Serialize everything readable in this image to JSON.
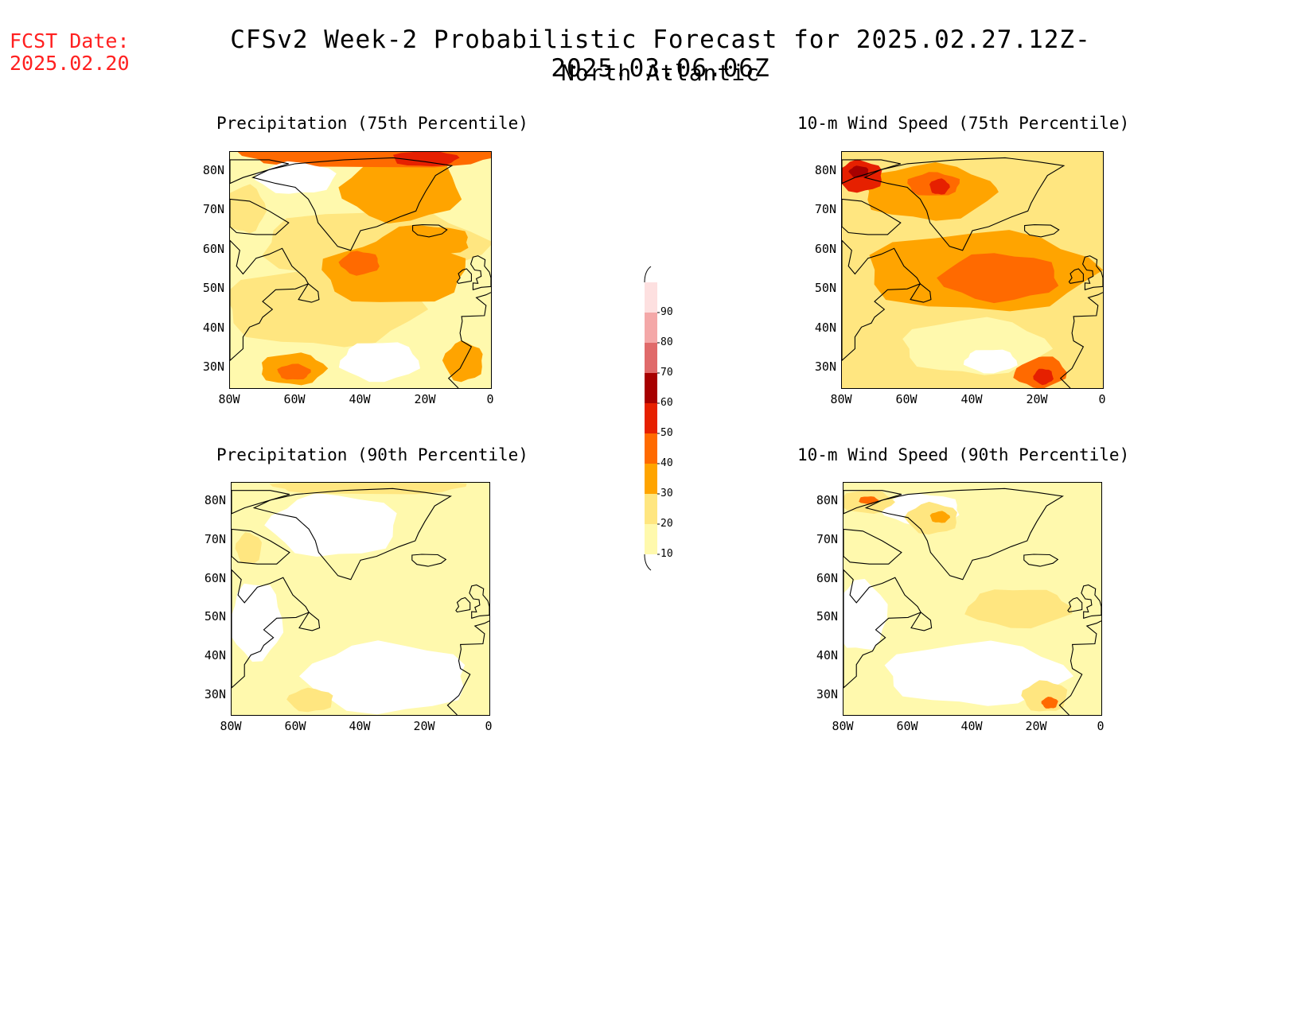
{
  "header": {
    "fcst_label": "FCST Date:",
    "fcst_date": "2025.02.20",
    "title": "CFSv2 Week-2 Probabilistic Forecast for 2025.02.27.12Z-2025.03.06.06Z",
    "subtitle": "North Atlantic"
  },
  "axes": {
    "lat_ticks": [
      "80N",
      "70N",
      "60N",
      "50N",
      "40N",
      "30N"
    ],
    "lon_ticks": [
      "80W",
      "60W",
      "40W",
      "20W",
      "0"
    ]
  },
  "colorbar": {
    "levels": [
      "10",
      "20",
      "30",
      "40",
      "50",
      "60",
      "70",
      "80",
      "90"
    ],
    "colors": [
      "#fff9ad",
      "#ffe680",
      "#ffa400",
      "#ff6a00",
      "#e62000",
      "#a70000",
      "#e06a6a",
      "#f4a8a8",
      "#fde0e0"
    ]
  },
  "panels": [
    {
      "title": "Precipitation (75th Percentile)",
      "intensity": "p75"
    },
    {
      "title": "10-m Wind Speed (75th Percentile)",
      "intensity": "w75"
    },
    {
      "title": "Precipitation (90th Percentile)",
      "intensity": "p90"
    },
    {
      "title": "10-m Wind Speed (90th Percentile)",
      "intensity": "w90"
    }
  ]
}
